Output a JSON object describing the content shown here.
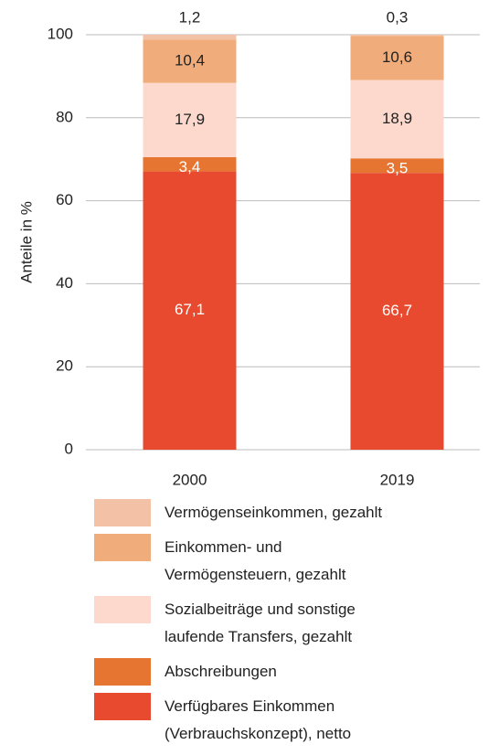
{
  "chart_data": {
    "type": "stacked_bar",
    "y_axis_label": "Anteile in %",
    "categories": [
      "2000",
      "2019"
    ],
    "series": [
      {
        "name": "Verfügbares Einkommen (Verbrauchskonzept), netto",
        "color": "#e84a2f",
        "values": [
          67.1,
          66.7
        ],
        "value_labels": [
          "67,1",
          "66,7"
        ]
      },
      {
        "name": "Abschreibungen",
        "color": "#e57530",
        "values": [
          3.4,
          3.5
        ],
        "value_labels": [
          "3,4",
          "3,5"
        ]
      },
      {
        "name": "Sozialbeiträge und sonstige laufende Transfers, gezahlt",
        "color": "#fcd9cc",
        "values": [
          17.9,
          18.9
        ],
        "value_labels": [
          "17,9",
          "18,9"
        ]
      },
      {
        "name": "Einkommen- und Vermögensteuern, gezahlt",
        "color": "#f0ac7b",
        "values": [
          10.4,
          10.6
        ],
        "value_labels": [
          "10,4",
          "10,6"
        ]
      },
      {
        "name": "Vermögenseinkommen, gezahlt",
        "color": "#f3c1a5",
        "values": [
          1.2,
          0.3
        ],
        "value_labels": [
          "1,2",
          "0,3"
        ]
      }
    ],
    "ylim": [
      0,
      100
    ],
    "yticks": [
      0,
      20,
      40,
      60,
      80,
      100
    ],
    "grid": true
  }
}
